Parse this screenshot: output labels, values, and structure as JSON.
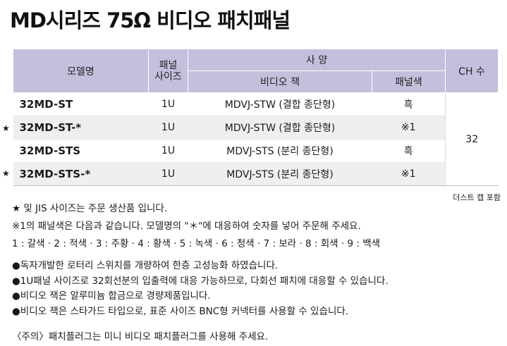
{
  "title": "MD시리즈 75Ω 비디오 패치패널",
  "table": {
    "headers": {
      "model": "모델명",
      "panel_size": "패널\n사이즈",
      "spec": "사 양",
      "video_jack": "비디오 잭",
      "panel_color": "패널색",
      "ch_count": "CH 수"
    },
    "rows": [
      {
        "star": "",
        "model": "32MD-ST",
        "size": "1U",
        "jack": "MDVJ-STW (결합 종단형)",
        "color": "흑"
      },
      {
        "star": "★",
        "model": "32MD-ST-*",
        "size": "1U",
        "jack": "MDVJ-STW (결합 종단형)",
        "color": "※1"
      },
      {
        "star": "",
        "model": "32MD-STS",
        "size": "1U",
        "jack": "MDVJ-STS (분리 종단형)",
        "color": "흑"
      },
      {
        "star": "★",
        "model": "32MD-STS-*",
        "size": "1U",
        "jack": "MDVJ-STS (분리 종단형)",
        "color": "※1"
      }
    ],
    "ch_value": "32"
  },
  "dust_cap": "더스트 캡 포함",
  "notes": [
    "★ 및 JIS 사이즈는 주문 생산품 입니다.",
    "※1의 패널색은 다음과 같습니다. 모델명의 \"＊\"에 대응하여 숫자를 넣어 주문해 주세요.",
    "1 : 갈색 · 2 : 적색 · 3 : 주황 · 4 : 황색 · 5 : 녹색 · 6 : 청색 · 7 : 보라 · 8 : 회색 · 9 : 백색"
  ],
  "features": [
    "●독자개발한 로터리 스위치를 개량하여 한층 고성능화 하였습니다.",
    "●1U패널 사이즈로 32회선분의 입출력에 대응 가능하므로, 다회선 패치에 대응할 수 있습니다.",
    "●비디오 잭은 알루미늄 합금으로 경량제품입니다.",
    "●비디오 잭은 스타가드 타입으로, 표준 사이즈 BNC형 커넥터를 사용할 수 있습니다."
  ],
  "caution": "〈주의〉패치플러그는 미니 비디오 패치플러그를 사용해 주세요."
}
